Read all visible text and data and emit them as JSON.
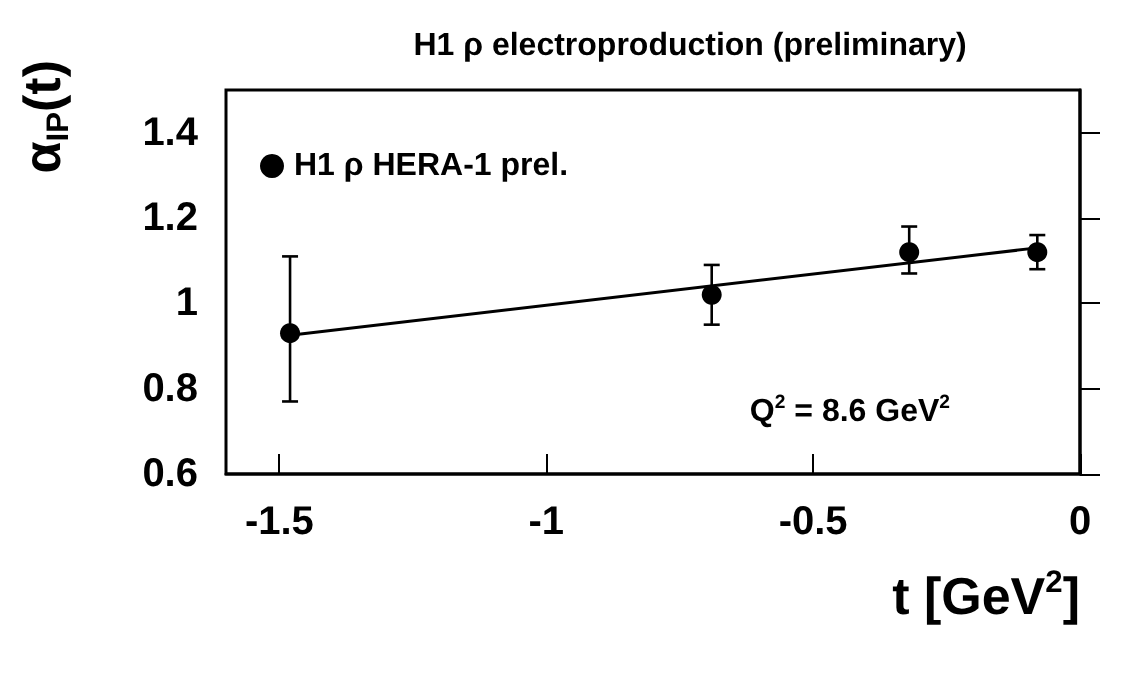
{
  "chart_data": {
    "type": "scatter",
    "title": "H1 ρ electroproduction (preliminary)",
    "xlabel": "t [GeV$^{2}$]",
    "ylabel": "α$_{IP}$(t)",
    "series": [
      {
        "name": "H1 ρ HERA-1 prel.",
        "color": "#000000",
        "x": [
          -1.48,
          -0.69,
          -0.32,
          -0.08
        ],
        "values": [
          0.93,
          1.02,
          1.12,
          1.12
        ],
        "errors": [
          [
            0.77,
            1.11
          ],
          [
            0.95,
            1.09
          ],
          [
            1.07,
            1.18
          ],
          [
            1.08,
            1.16
          ]
        ]
      },
      {
        "type": "line",
        "marker": "none",
        "color": "#000000",
        "x": [
          -1.48,
          -0.08
        ],
        "values": [
          0.925,
          1.13
        ]
      }
    ],
    "xlim": [
      -1.6,
      0
    ],
    "xticks": [
      -1.5,
      -1,
      -0.5,
      0
    ],
    "ylim": [
      0.6,
      1.5
    ],
    "yticks": [
      0.6,
      0.8,
      1,
      1.2,
      1.4
    ],
    "annotations": [
      "Q$^{2}$ = 8.6 GeV$^{2}$"
    ],
    "legend": "top left",
    "marker": "circle",
    "grid": false
  }
}
